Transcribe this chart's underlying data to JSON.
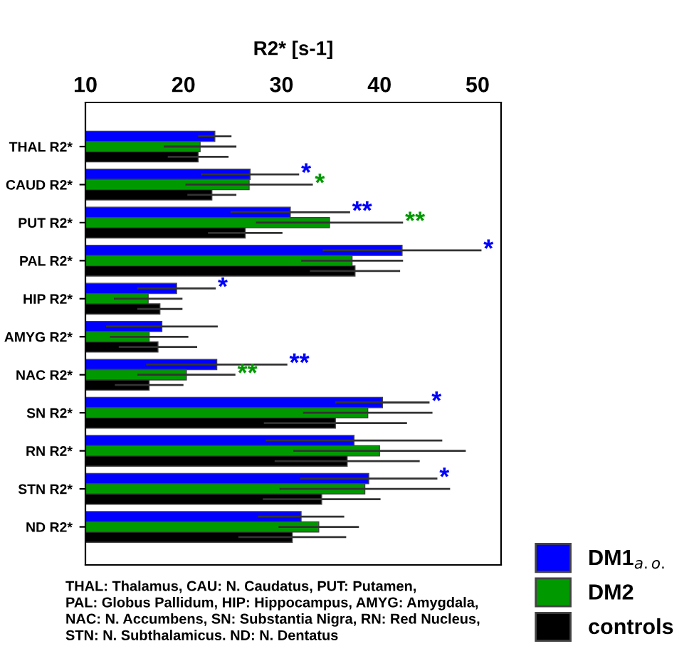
{
  "chart_data": {
    "type": "bar",
    "orientation": "horizontal",
    "title": "R2* [s-1]",
    "categories": [
      "THAL R2*",
      "CAUD R2*",
      "PUT R2*",
      "PAL R2*",
      "HIP R2*",
      "AMYG R2*",
      "NAC R2*",
      "SN R2*",
      "RN R2*",
      "STN R2*",
      "ND R2*"
    ],
    "series": [
      {
        "name": "DM1$_{a.o.}$",
        "color": "#0000ff",
        "values": [
          23.2,
          26.8,
          30.9,
          42.3,
          19.3,
          17.8,
          23.4,
          40.3,
          37.4,
          38.9,
          32.0
        ],
        "errors": [
          1.7,
          5.0,
          6.1,
          8.1,
          4.0,
          5.7,
          7.2,
          4.8,
          9.0,
          7.0,
          4.4
        ],
        "value_labels": [
          null,
          "*",
          "**",
          "*",
          "*",
          null,
          "**",
          "*",
          null,
          "*",
          null
        ]
      },
      {
        "name": "DM2",
        "color": "#009900",
        "values": [
          21.7,
          26.7,
          34.9,
          37.2,
          16.4,
          16.5,
          20.3,
          38.8,
          40.0,
          38.5,
          33.8
        ],
        "errors": [
          3.7,
          6.5,
          7.5,
          5.2,
          3.5,
          4.0,
          5.0,
          6.6,
          8.8,
          8.7,
          4.1
        ],
        "value_labels": [
          null,
          "*",
          "**",
          null,
          null,
          null,
          "**",
          null,
          null,
          null,
          null
        ]
      },
      {
        "name": "controls",
        "color": "#000000",
        "values": [
          21.5,
          22.9,
          26.3,
          37.5,
          17.6,
          17.4,
          16.5,
          35.5,
          36.7,
          34.1,
          31.1
        ],
        "errors": [
          3.1,
          2.5,
          3.8,
          4.6,
          2.3,
          4.0,
          3.5,
          7.3,
          7.4,
          6.0,
          5.5
        ]
      }
    ],
    "xlim": [
      10,
      52.4
    ],
    "xticks": [
      10,
      20,
      30,
      40,
      50
    ],
    "legend": "bottom right",
    "grid": false,
    "annotations": [
      "THAL: Thalamus, CAU: N. Caudatus, PUT: Putamen,\nPAL: Globus Pallidum, HIP: Hippocampus, AMYG: Amygdala,\nNAC: N. Accumbens, SN: Substantia Nigra, RN: Red Nucleus,\nSTN: N. Subthalamicus. ND: N. Dentatus"
    ]
  }
}
